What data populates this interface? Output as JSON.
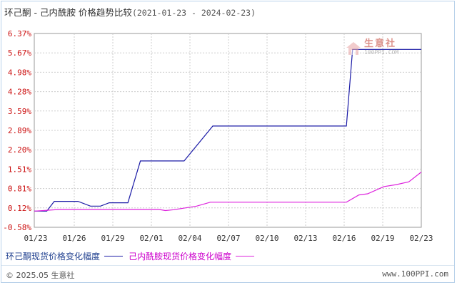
{
  "title": {
    "main": "环己酮 - 己内酰胺 价格趋势比较",
    "range": "(2021-01-23 - 2024-02-23)"
  },
  "logo": {
    "name": "生意社",
    "url": "100PPI.COM"
  },
  "legend": {
    "series1": "环己酮现货价格变化幅度",
    "series2": "己内酰胺现货价格变化幅度"
  },
  "footer": {
    "copyright": "© 2025.05 生意社",
    "site": "www.100PPI.com"
  },
  "colors": {
    "series1": "#1a1aa6",
    "series2": "#dd22dd",
    "ytick": "#cc1111",
    "grid": "#cccccc"
  },
  "chart_data": {
    "type": "line",
    "x_ticks": [
      "01/23",
      "01/26",
      "01/29",
      "02/01",
      "02/04",
      "02/07",
      "02/10",
      "02/13",
      "02/16",
      "02/19",
      "02/23"
    ],
    "y_ticks": [
      "6.37%",
      "5.67%",
      "4.98%",
      "4.28%",
      "3.59%",
      "2.89%",
      "2.20%",
      "1.51%",
      "0.81%",
      "0.12%",
      "-0.58%"
    ],
    "ylim": [
      -0.58,
      6.37
    ],
    "series": [
      {
        "name": "环己酮现货价格变化幅度",
        "x": [
          0,
          1,
          1.6,
          3.5,
          4.5,
          5.3,
          6,
          7.5,
          8.5,
          11,
          12,
          14.3,
          16.1,
          20.5,
          22.7,
          25,
          25.5,
          31
        ],
        "y": [
          0,
          0,
          0.35,
          0.35,
          0.18,
          0.18,
          0.3,
          0.3,
          1.8,
          1.8,
          1.8,
          3.05,
          3.05,
          3.05,
          3.05,
          3.05,
          5.8,
          5.8
        ]
      },
      {
        "name": "己内酰胺现货价格变化幅度",
        "x": [
          0,
          2,
          3,
          6,
          9,
          10,
          10.5,
          11.2,
          13,
          14.1,
          16.1,
          20.5,
          22.7,
          25,
          26,
          26.7,
          28,
          29,
          30,
          31
        ],
        "y": [
          0,
          0.06,
          0.06,
          0.06,
          0.06,
          0.06,
          0.02,
          0.05,
          0.18,
          0.32,
          0.32,
          0.32,
          0.32,
          0.32,
          0.58,
          0.62,
          0.88,
          0.95,
          1.05,
          1.4
        ]
      }
    ],
    "grid": true,
    "legend_position": "bottom"
  }
}
